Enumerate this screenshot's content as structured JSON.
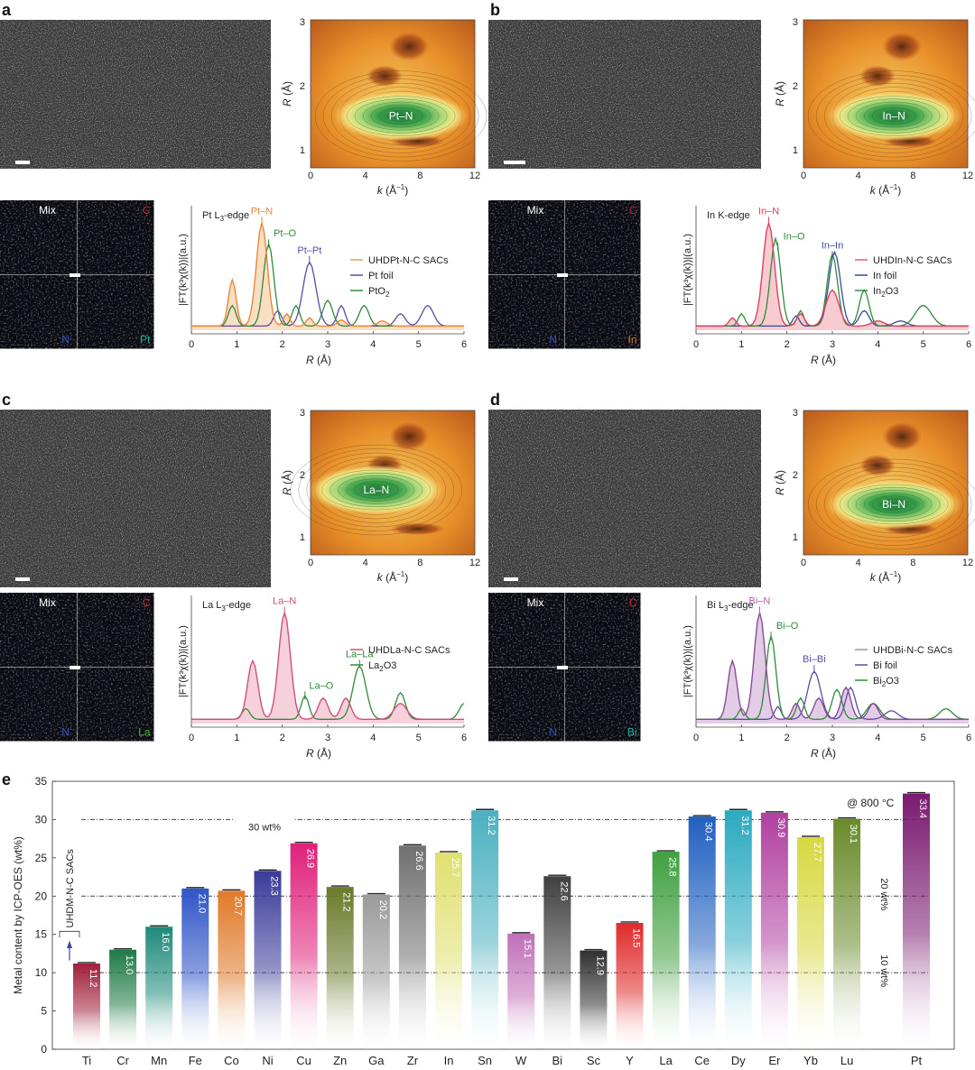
{
  "panels": [
    {
      "letter": "a",
      "wavelet_label": "Pt–N",
      "edge_main": "Pt L",
      "edge_sub": "3",
      "edge_tail": "-edge",
      "maps": [
        "Mix",
        "C",
        "N",
        "Pt"
      ],
      "map_colors": [
        "#b04ac8",
        "#e01b2a",
        "#2f55c8",
        "#1fb5a5"
      ],
      "peak_labels": [
        {
          "text": "Pt–N",
          "color": "#e8873a",
          "x": 1.55
        },
        {
          "text": "Pt–O",
          "color": "#2e8b3a",
          "x": 1.7
        },
        {
          "text": "Pt–Pt",
          "color": "#5a4aa8",
          "x": 2.6
        }
      ],
      "legend": [
        {
          "main": "UHDPt-N-C SACs",
          "sub": "",
          "tail": "",
          "color": "#e0a050"
        },
        {
          "main": "Pt foil",
          "sub": "",
          "tail": "",
          "color": "#5a4aa8"
        },
        {
          "main": "PtO",
          "sub": "2",
          "tail": "",
          "color": "#2e8b3a"
        }
      ],
      "curve_color": "#e8873a",
      "fill_color": "#f3a35a"
    },
    {
      "letter": "b",
      "wavelet_label": "In–N",
      "edge_main": "In K-edge",
      "edge_sub": "",
      "edge_tail": "",
      "maps": [
        "Mix",
        "C",
        "N",
        "In"
      ],
      "map_colors": [
        "#b8304a",
        "#b8203a",
        "#2f55c8",
        "#e07a2a"
      ],
      "peak_labels": [
        {
          "text": "In–N",
          "color": "#e04060",
          "x": 1.6
        },
        {
          "text": "In–O",
          "color": "#2e8b3a",
          "x": 1.8
        },
        {
          "text": "In–In",
          "color": "#3a4a98",
          "x": 3.0
        }
      ],
      "legend": [
        {
          "main": "UHDIn-N-C SACs",
          "sub": "",
          "tail": "",
          "color": "#e06070"
        },
        {
          "main": "In foil",
          "sub": "",
          "tail": "",
          "color": "#3a4a98"
        },
        {
          "main": "In",
          "sub": "2",
          "tail": "O3",
          "color": "#2e8b3a"
        }
      ],
      "curve_color": "#e04060",
      "fill_color": "#e86a78"
    },
    {
      "letter": "c",
      "wavelet_label": "La–N",
      "edge_main": "La L",
      "edge_sub": "3",
      "edge_tail": "-edge",
      "maps": [
        "Mix",
        "C",
        "N",
        "La"
      ],
      "map_colors": [
        "#e8b0c0",
        "#e01b2a",
        "#2f55c8",
        "#3ac030"
      ],
      "peak_labels": [
        {
          "text": "La–N",
          "color": "#d0507a",
          "x": 2.05
        },
        {
          "text": "La–O",
          "color": "#2e8b3a",
          "x": 2.5
        },
        {
          "text": "La–La",
          "color": "#2e8b3a",
          "x": 3.7
        }
      ],
      "legend": [
        {
          "main": "UHDLa-N-C SACs",
          "sub": "",
          "tail": "",
          "color": "#d0507a"
        },
        {
          "main": "La",
          "sub": "2",
          "tail": "O3",
          "color": "#2e8b3a"
        }
      ],
      "curve_color": "#d0507a",
      "fill_color": "#e47a98"
    },
    {
      "letter": "d",
      "wavelet_label": "Bi–N",
      "edge_main": "Bi L",
      "edge_sub": "3",
      "edge_tail": "-edge",
      "maps": [
        "Mix",
        "C",
        "N",
        "Bi"
      ],
      "map_colors": [
        "#c890d8",
        "#e01b2a",
        "#2f55c8",
        "#1fb5a5"
      ],
      "peak_labels": [
        {
          "text": "Bi–N",
          "color": "#b060a8",
          "x": 1.4
        },
        {
          "text": "Bi–O",
          "color": "#2e8b3a",
          "x": 1.65
        },
        {
          "text": "Bi–Bi",
          "color": "#5a4aa8",
          "x": 2.6
        }
      ],
      "legend": [
        {
          "main": "UHDBi-N-C SACs",
          "sub": "",
          "tail": "",
          "color": "#b080b8"
        },
        {
          "main": "Bi foil",
          "sub": "",
          "tail": "",
          "color": "#5a4aa8"
        },
        {
          "main": "Bi",
          "sub": "2",
          "tail": "O3",
          "color": "#2e8b3a"
        }
      ],
      "curve_color": "#8a4a98",
      "fill_color": "#b070b8"
    }
  ],
  "wavelet_axes": {
    "ylabel_italic": "R",
    "ylabel_rest": " (Å)",
    "xlabel_italic": "k",
    "xlabel_rest": " (Å",
    "xlabel_sup": "−1",
    "xlabel_close": ")",
    "xticks": [
      "0",
      "4",
      "8",
      "12"
    ],
    "yticks": [
      "1",
      "2",
      "3"
    ]
  },
  "ft_axes": {
    "ylabel": "|FT(k³χ(k))|(a.u.)",
    "xlabel_italic": "R",
    "xlabel_rest": " (Å)",
    "xticks": [
      "0",
      "1",
      "2",
      "3",
      "4",
      "5",
      "6"
    ]
  },
  "panel_e": {
    "letter": "e",
    "chart_data": {
      "type": "bar",
      "categories": [
        "Ti",
        "Cr",
        "Mn",
        "Fe",
        "Co",
        "Ni",
        "Cu",
        "Zn",
        "Ga",
        "Zr",
        "In",
        "Sn",
        "W",
        "Bi",
        "Sc",
        "Y",
        "La",
        "Ce",
        "Dy",
        "Er",
        "Yb",
        "Lu",
        "Pt"
      ],
      "values": [
        11.2,
        13.0,
        16.0,
        21.0,
        20.7,
        23.3,
        26.9,
        21.2,
        20.2,
        26.6,
        25.7,
        31.2,
        15.1,
        22.6,
        12.9,
        16.5,
        25.8,
        30.4,
        31.2,
        30.9,
        27.7,
        30.1,
        33.4
      ],
      "value_labels": [
        "11.2",
        "13.0",
        "16.0",
        "21.0",
        "20.7",
        "23.3",
        "26.9",
        "21.2",
        "20.2",
        "26.6",
        "25.7",
        "31.2",
        "15.1",
        "22.6",
        "12.9",
        "16.5",
        "25.8",
        "30.4",
        "31.2",
        "30.9",
        "27.7",
        "30.1",
        "33.4"
      ],
      "colors": [
        "#a0203a",
        "#1f7a45",
        "#1f8a7a",
        "#2f55c8",
        "#e07a2a",
        "#3a3a9a",
        "#e0207a",
        "#6a7a2a",
        "#9a9a9a",
        "#707070",
        "#e0e070",
        "#4ab0c0",
        "#c070b8",
        "#404040",
        "#303030",
        "#e02a2a",
        "#40a040",
        "#2060c0",
        "#2aaac0",
        "#b040a0",
        "#d8d840",
        "#6a8a2a",
        "#7a1a70"
      ],
      "title": "",
      "xlabel": "",
      "ylabel": "Metal content by ICP-OES (wt%)",
      "ylim": [
        0,
        35
      ],
      "yticks": [
        "0",
        "5",
        "10",
        "15",
        "20",
        "25",
        "30",
        "35"
      ],
      "reference_lines": [
        {
          "value": 10,
          "label": "10 wt%"
        },
        {
          "value": 20,
          "label": "20 wt%"
        },
        {
          "value": 30,
          "label": "30 wt%"
        }
      ],
      "annotation": "@ 800 °C",
      "bracket_label": "UHDM-N-C SACs"
    }
  }
}
